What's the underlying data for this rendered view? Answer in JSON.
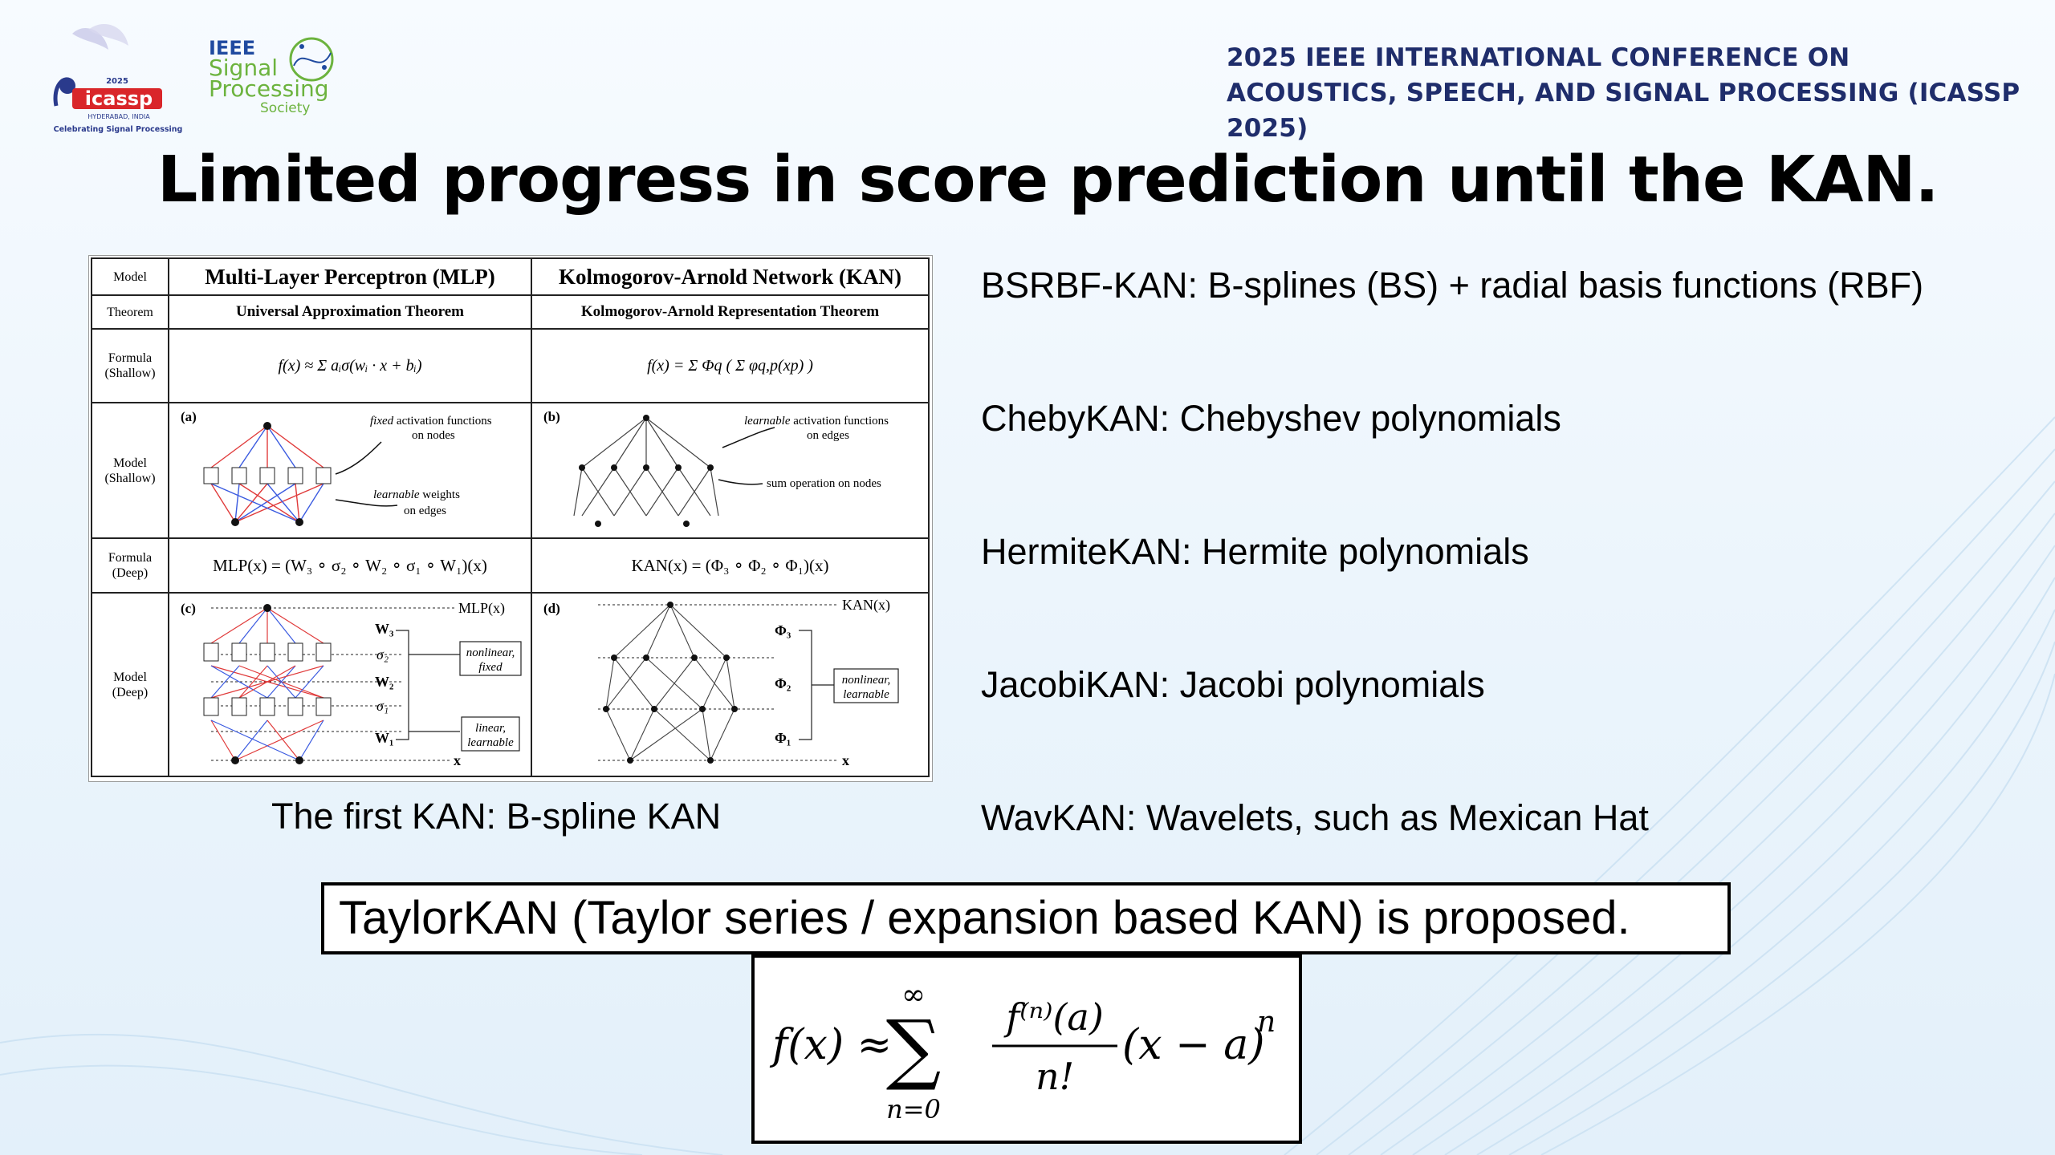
{
  "header": {
    "icassp_logo": {
      "year": "2025",
      "name": "icassp",
      "location": "HYDERABAD, INDIA",
      "tagline": "Celebrating Signal Processing"
    },
    "sps_logo": {
      "line1": "IEEE",
      "line2": "Signal",
      "line3": "Processing",
      "line4": "Society"
    },
    "conference_line1": "2025 IEEE INTERNATIONAL CONFERENCE ON",
    "conference_line2": "ACOUSTICS, SPEECH, AND SIGNAL PROCESSING (ICASSP 2025)"
  },
  "slide": {
    "title": "Limited progress in score prediction until the KAN."
  },
  "figure": {
    "row_labels": {
      "model": "Model",
      "theorem": "Theorem",
      "formula_shallow_1": "Formula",
      "formula_shallow_2": "(Shallow)",
      "model_shallow_1": "Model",
      "model_shallow_2": "(Shallow)",
      "formula_deep_1": "Formula",
      "formula_deep_2": "(Deep)",
      "model_deep_1": "Model",
      "model_deep_2": "(Deep)"
    },
    "mlp_header": "Multi-Layer Perceptron (MLP)",
    "kan_header": "Kolmogorov-Arnold Network (KAN)",
    "mlp_theorem": "Universal Approximation Theorem",
    "kan_theorem": "Kolmogorov-Arnold Representation Theorem",
    "mlp_formula_shallow": "f(x) ≈ Σ aᵢσ(wᵢ · x + bᵢ)",
    "kan_formula_shallow": "f(x) = Σ Φq ( Σ φq,p(xp) )",
    "panel_a": "(a)",
    "panel_b": "(b)",
    "panel_c": "(c)",
    "panel_d": "(d)",
    "a_note1_em": "fixed",
    "a_note1": "activation functions",
    "a_note2": "on nodes",
    "a_note3_em": "learnable",
    "a_note3": "weights",
    "a_note4": "on edges",
    "b_note1_em": "learnable",
    "b_note1": "activation functions",
    "b_note2": "on edges",
    "b_note3": "sum operation on nodes",
    "mlp_formula_deep": "MLP(x) = (W₃ ∘ σ₂ ∘ W₂ ∘ σ₁ ∘ W₁)(x)",
    "kan_formula_deep": "KAN(x) = (Φ₃ ∘ Φ₂ ∘ Φ₁)(x)",
    "c_mlpx": "MLP(x)",
    "c_w3": "W₃",
    "c_s2": "σ₂",
    "c_w2": "W₂",
    "c_s1": "σ₁",
    "c_w1": "W₁",
    "c_x": "x",
    "c_box1a": "nonlinear,",
    "c_box1b": "fixed",
    "c_box2a": "linear,",
    "c_box2b": "learnable",
    "d_kanx": "KAN(x)",
    "d_p3": "Φ₃",
    "d_p2": "Φ₂",
    "d_p1": "Φ₁",
    "d_x": "x",
    "d_box1a": "nonlinear,",
    "d_box1b": "learnable"
  },
  "caption": "The first KAN: B-spline KAN",
  "kan_variants": [
    "BSRBF-KAN: B-splines (BS) + radial basis functions (RBF)",
    "ChebyKAN: Chebyshev polynomials",
    "HermiteKAN: Hermite polynomials",
    "JacobiKAN: Jacobi polynomials",
    "WavKAN: Wavelets, such as Mexican Hat"
  ],
  "proposal": "TaylorKAN (Taylor series / expansion based KAN)  is proposed.",
  "formula": {
    "lhs": "f(x) ≈",
    "sum_upper": "∞",
    "sum_symbol": "∑",
    "sum_lower": "n=0",
    "numerator": "f⁽ⁿ⁾(a)",
    "denominator": "n!",
    "factor": "(x − a)",
    "exponent": "n"
  },
  "colors": {
    "conference_text": "#1f2d6b",
    "background": "#ecf5fc",
    "mlp_red": "#e03a3a",
    "mlp_blue": "#3a5ae0"
  }
}
